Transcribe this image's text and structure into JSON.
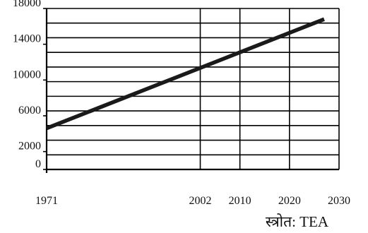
{
  "chart_data": {
    "type": "line",
    "title": "",
    "xlabel": "",
    "ylabel": "",
    "x_ticks": [
      1971,
      2002,
      2010,
      2020,
      2030
    ],
    "y_ticks": [
      0,
      2000,
      6000,
      10000,
      14000,
      18000
    ],
    "xlim": [
      1971,
      2030
    ],
    "ylim": [
      0,
      18000
    ],
    "grid": true,
    "series": [
      {
        "x": [
          1971,
          2027
        ],
        "y": [
          4600,
          16800
        ]
      }
    ],
    "source": "स्त्रोत: TEA"
  }
}
